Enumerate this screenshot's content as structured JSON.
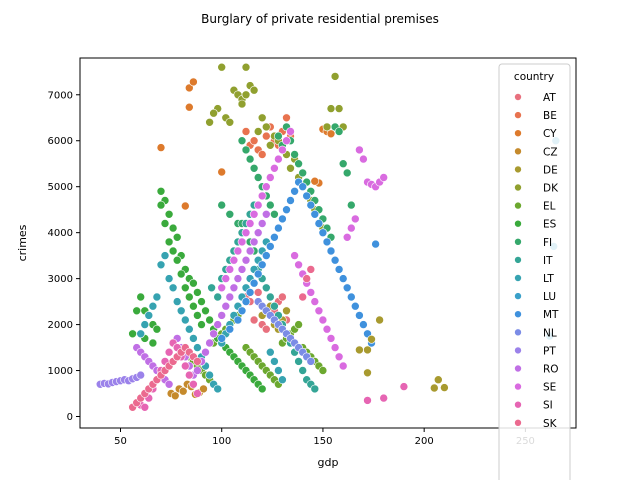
{
  "chart_data": {
    "type": "scatter",
    "title": "Burglary of private residential premises",
    "xlabel": "gdp",
    "ylabel": "crimes",
    "xlim": [
      30,
      275
    ],
    "ylim": [
      -250,
      7800
    ],
    "xticks": [
      50,
      100,
      150,
      200,
      250
    ],
    "yticks": [
      0,
      1000,
      2000,
      3000,
      4000,
      5000,
      6000,
      7000
    ],
    "grid": false,
    "legend_title": "country",
    "legend_position": "top-right",
    "series": [
      {
        "name": "AT",
        "color": "#e8707e",
        "x": [
          108,
          110,
          112,
          114,
          116,
          118,
          120,
          122,
          124,
          126,
          128,
          130,
          132
        ],
        "y": [
          2400,
          2300,
          2600,
          2500,
          2100,
          2700,
          2000,
          1900,
          2200,
          2300,
          2500,
          2600,
          2100
        ]
      },
      {
        "name": "BE",
        "color": "#e8734f",
        "x": [
          112,
          114,
          116,
          118,
          120,
          122,
          124,
          126,
          128,
          130,
          132,
          134
        ],
        "y": [
          6200,
          5900,
          6000,
          5800,
          5700,
          6100,
          6300,
          6000,
          5900,
          6200,
          6500,
          6100
        ]
      },
      {
        "name": "CY",
        "color": "#dd7a2c",
        "x": [
          70,
          82,
          84,
          86,
          84,
          100,
          150,
          152,
          154,
          148,
          146
        ],
        "y": [
          5850,
          4580,
          7150,
          7280,
          6730,
          5320,
          6250,
          6200,
          6150,
          5080,
          5120
        ]
      },
      {
        "name": "CZ",
        "color": "#c58a2c",
        "x": [
          75,
          77,
          79,
          81,
          83,
          85,
          87,
          89,
          91
        ],
        "y": [
          500,
          450,
          600,
          550,
          700,
          650,
          480,
          520,
          600
        ]
      },
      {
        "name": "DE",
        "color": "#a89a2f",
        "x": [
          118,
          120,
          122,
          124,
          126,
          128,
          130,
          132
        ],
        "y": [
          2500,
          2200,
          2300,
          2400,
          2000,
          1900,
          2100,
          2300
        ]
      },
      {
        "name": "DK",
        "color": "#90a02f",
        "x": [
          100,
          102,
          104,
          106,
          108,
          110,
          112,
          114,
          116,
          118,
          120,
          122,
          124,
          126,
          128,
          130,
          132,
          134,
          136,
          138,
          140,
          142,
          144,
          146,
          148,
          150,
          152,
          154,
          156,
          158,
          160,
          98,
          96,
          94,
          110,
          112
        ],
        "y": [
          7600,
          6500,
          6400,
          7100,
          7000,
          6900,
          7600,
          7200,
          7100,
          6200,
          6500,
          6300,
          5900,
          6100,
          6000,
          5800,
          5700,
          5400,
          5600,
          5200,
          5000,
          4800,
          4700,
          4500,
          4200,
          4100,
          6300,
          6700,
          7400,
          6700,
          6300,
          6700,
          6600,
          6400,
          6800,
          7000
        ]
      },
      {
        "name": "EL",
        "color": "#6ca82f",
        "x": [
          80,
          82,
          84,
          86,
          88,
          90,
          92,
          94,
          96,
          98,
          100,
          102,
          104,
          106,
          108,
          110,
          112,
          114,
          116,
          118,
          120,
          122,
          124,
          126,
          128,
          130,
          132,
          134,
          136,
          138,
          140,
          142,
          144,
          146,
          148,
          150
        ],
        "y": [
          1500,
          1400,
          1300,
          1200,
          1100,
          1000,
          900,
          800,
          1600,
          1700,
          1800,
          1900,
          2000,
          2100,
          2200,
          2300,
          1500,
          1400,
          1300,
          1200,
          1100,
          1000,
          900,
          800,
          700,
          1600,
          1700,
          1800,
          1900,
          2000,
          1500,
          1400,
          1300,
          1200,
          1100,
          1000
        ]
      },
      {
        "name": "ES",
        "color": "#3aaa3c",
        "x": [
          60,
          62,
          64,
          66,
          68,
          70,
          72,
          74,
          76,
          78,
          80,
          82,
          84,
          86,
          88,
          90,
          92,
          94,
          96,
          98,
          100,
          102,
          104,
          106,
          108,
          110,
          112,
          114,
          116,
          118,
          120,
          70,
          72,
          74,
          76,
          78,
          80,
          82,
          84,
          86,
          88,
          90,
          58,
          56,
          62,
          66
        ],
        "y": [
          2600,
          2300,
          2200,
          2000,
          1900,
          4900,
          4700,
          4400,
          4100,
          3900,
          3500,
          3200,
          3000,
          2900,
          2700,
          2500,
          2300,
          2100,
          1900,
          1700,
          1600,
          1500,
          1400,
          1300,
          1200,
          1100,
          1000,
          900,
          800,
          700,
          600,
          4600,
          4200,
          3800,
          3600,
          3400,
          3100,
          2800,
          2600,
          2400,
          2200,
          2000,
          2300,
          1800,
          1700,
          1600
        ]
      },
      {
        "name": "FI",
        "color": "#35a86b",
        "x": [
          100,
          104,
          108,
          110,
          112,
          114,
          116,
          118,
          120,
          122,
          124,
          126,
          128,
          130,
          132,
          134,
          136,
          138,
          140,
          142,
          144,
          146,
          148,
          150,
          152,
          154,
          156,
          158,
          160,
          162,
          164,
          110,
          112,
          114,
          116,
          118
        ],
        "y": [
          4600,
          4400,
          4200,
          6000,
          5800,
          5600,
          5400,
          5200,
          5000,
          4800,
          4600,
          4400,
          6100,
          5900,
          6300,
          6000,
          5700,
          5500,
          5300,
          5100,
          4900,
          4700,
          4500,
          4300,
          4100,
          3900,
          6300,
          6200,
          5500,
          5300,
          4600,
          4200,
          4000,
          3800,
          3600,
          3400
        ]
      },
      {
        "name": "IT",
        "color": "#34a596",
        "x": [
          95,
          98,
          100,
          102,
          104,
          106,
          108,
          110,
          112,
          114,
          116,
          118,
          120,
          122,
          124,
          126,
          128,
          130,
          132,
          134,
          136,
          138,
          140,
          142,
          144,
          146
        ],
        "y": [
          2800,
          2600,
          3000,
          3200,
          3400,
          3600,
          3800,
          4000,
          4200,
          4400,
          4600,
          3200,
          3000,
          2800,
          2600,
          2400,
          2200,
          2000,
          1800,
          1600,
          1400,
          1200,
          1000,
          800,
          700,
          600
        ]
      },
      {
        "name": "LT",
        "color": "#36a3b1",
        "x": [
          60,
          62,
          64,
          66,
          68,
          70,
          72,
          74,
          76,
          78,
          80,
          82,
          84,
          86,
          88,
          90,
          92,
          94,
          96,
          98,
          100,
          102,
          104,
          106,
          108,
          110,
          112,
          114,
          116,
          118,
          120,
          122,
          124,
          126,
          128,
          130
        ],
        "y": [
          1800,
          2000,
          2200,
          2400,
          2600,
          3300,
          3500,
          3000,
          2800,
          2500,
          2300,
          2100,
          1900,
          1700,
          1500,
          1300,
          1100,
          900,
          700,
          600,
          1600,
          1800,
          2000,
          2200,
          2400,
          2600,
          2800,
          3000,
          3200,
          3400,
          3600,
          3800,
          1400,
          1200,
          1000,
          800
        ]
      },
      {
        "name": "LU",
        "color": "#3aa0c9",
        "x": [
          265,
          264,
          262
        ],
        "y": [
          6000,
          3700,
          1750
        ]
      },
      {
        "name": "MT",
        "color": "#3f91dd",
        "x": [
          100,
          104,
          108,
          110,
          112,
          114,
          116,
          118,
          120,
          122,
          124,
          126,
          128,
          130,
          132,
          134,
          136,
          138,
          140,
          142,
          144,
          146,
          148,
          150,
          152,
          154,
          156,
          158,
          160,
          162,
          164,
          166,
          168,
          170,
          172,
          174,
          176
        ],
        "y": [
          1700,
          1900,
          2100,
          2300,
          2500,
          2700,
          2900,
          3100,
          3300,
          3500,
          3700,
          3900,
          4100,
          4300,
          4500,
          4700,
          4900,
          5100,
          5000,
          4800,
          4600,
          4400,
          4200,
          4000,
          3800,
          3600,
          3400,
          3200,
          3000,
          2800,
          2600,
          2400,
          2200,
          2000,
          1800,
          1600,
          3750
        ]
      },
      {
        "name": "NL",
        "color": "#7b8ce6",
        "x": [
          118,
          120,
          122,
          124,
          126,
          128,
          130,
          132,
          134,
          136,
          138,
          140,
          142,
          144
        ],
        "y": [
          2500,
          2400,
          2300,
          2200,
          2100,
          2000,
          1900,
          1800,
          1700,
          1600,
          1500,
          1400,
          1300,
          1200
        ]
      },
      {
        "name": "PT",
        "color": "#9b82ea",
        "x": [
          40,
          42,
          44,
          46,
          48,
          50,
          52,
          54,
          56,
          58,
          60
        ],
        "y": [
          700,
          720,
          710,
          740,
          760,
          780,
          800,
          780,
          820,
          850,
          900
        ]
      },
      {
        "name": "RO",
        "color": "#c06fe5",
        "x": [
          58,
          60,
          62,
          64,
          66,
          68,
          70,
          72,
          74,
          76,
          78,
          80,
          82,
          84,
          86,
          88,
          90,
          92,
          94,
          96,
          98,
          100,
          102,
          104,
          106,
          108,
          110,
          112,
          114,
          116,
          118,
          120,
          122
        ],
        "y": [
          1500,
          1400,
          1300,
          1200,
          1100,
          1000,
          900,
          800,
          700,
          1600,
          1700,
          1500,
          1300,
          1100,
          900,
          1000,
          1200,
          1400,
          1600,
          1800,
          2000,
          2200,
          2400,
          2600,
          2800,
          3000,
          3200,
          3400,
          3600,
          3800,
          4000,
          4200,
          4400
        ]
      },
      {
        "name": "SE",
        "color": "#d96be0",
        "x": [
          100,
          102,
          104,
          106,
          108,
          110,
          112,
          114,
          116,
          118,
          120,
          122,
          124,
          126,
          128,
          130,
          132,
          134,
          136,
          138,
          140,
          142,
          144,
          146,
          148,
          150,
          152,
          154,
          156,
          158,
          160,
          162,
          164,
          166,
          168,
          170,
          172,
          174,
          176,
          178,
          180
        ],
        "y": [
          2800,
          3000,
          3200,
          3400,
          3600,
          3800,
          4000,
          4200,
          4400,
          4600,
          4800,
          5000,
          5200,
          5400,
          5600,
          5800,
          6000,
          6200,
          3500,
          3300,
          3100,
          2900,
          2700,
          2500,
          2300,
          2100,
          1900,
          1700,
          1500,
          1300,
          1100,
          3900,
          4100,
          4300,
          5800,
          5600,
          5100,
          5050,
          5000,
          5100,
          5200
        ]
      },
      {
        "name": "SI",
        "color": "#e665b3",
        "x": [
          58,
          60,
          62,
          64,
          66,
          68,
          70,
          72,
          74,
          76,
          78,
          80,
          82,
          84,
          86,
          88,
          190,
          180,
          172
        ],
        "y": [
          300,
          250,
          200,
          400,
          600,
          800,
          1000,
          1200,
          1400,
          1600,
          1500,
          1300,
          1100,
          900,
          700,
          500,
          650,
          400,
          350
        ]
      },
      {
        "name": "SK",
        "color": "#eb6a8f",
        "x": [
          56,
          58,
          60,
          62,
          64,
          66,
          68,
          70,
          72,
          74,
          76,
          78,
          80,
          82,
          84,
          86,
          88,
          140,
          142,
          144
        ],
        "y": [
          200,
          300,
          400,
          500,
          600,
          700,
          800,
          900,
          1000,
          1100,
          1200,
          1300,
          1400,
          1500,
          1400,
          1300,
          1200,
          2600,
          3000,
          3200
        ]
      }
    ],
    "extra_points": [
      {
        "x": 207,
        "y": 800,
        "color": "#a89a2f"
      },
      {
        "x": 205,
        "y": 620,
        "color": "#a89a2f"
      },
      {
        "x": 210,
        "y": 630,
        "color": "#a89a2f"
      },
      {
        "x": 172,
        "y": 950,
        "color": "#a89a2f"
      },
      {
        "x": 168,
        "y": 1450,
        "color": "#a89a2f"
      },
      {
        "x": 172,
        "y": 1450,
        "color": "#a89a2f"
      },
      {
        "x": 178,
        "y": 2100,
        "color": "#a89a2f"
      },
      {
        "x": 174,
        "y": 1680,
        "color": "#a89a2f"
      }
    ]
  }
}
